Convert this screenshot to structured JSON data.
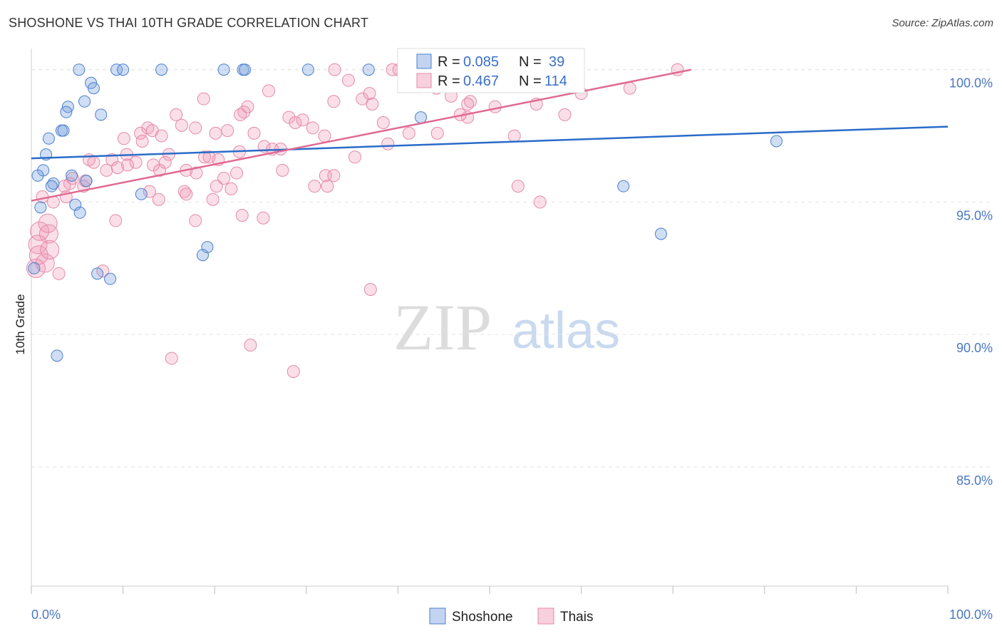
{
  "title": "SHOSHONE VS THAI 10TH GRADE CORRELATION CHART",
  "source": "Source: ZipAtlas.com",
  "watermark": {
    "zip": "ZIP",
    "atlas": "atlas"
  },
  "colors": {
    "shoshone_fill": "rgba(120,160,220,0.35)",
    "shoshone_stroke": "#4a7fd0",
    "shoshone_line": "#2a6cc9",
    "thai_fill": "rgba(240,150,180,0.30)",
    "thai_stroke": "#e58aa8",
    "thai_line": "#e06a93",
    "grid": "#e3e3e3",
    "tick_text": "#4a78c2"
  },
  "legend": {
    "r_label": "R =",
    "n_label": "N =",
    "rows": [
      {
        "name": "Shoshone",
        "r": "0.085",
        "n": "39"
      },
      {
        "name": "Thais",
        "r": "0.467",
        "n": "114"
      }
    ]
  },
  "chart_data": {
    "type": "scatter",
    "xlabel": "",
    "ylabel": "10th Grade",
    "xlim": [
      0,
      100
    ],
    "ylim": [
      80.5,
      100.8
    ],
    "x_tick_labels": [
      "0.0%",
      "100.0%"
    ],
    "y_ticks": [
      100,
      95,
      90,
      85
    ],
    "y_tick_labels": [
      "100.0%",
      "95.0%",
      "90.0%",
      "85.0%"
    ],
    "series": [
      {
        "name": "Shoshone",
        "trend": {
          "x": [
            0,
            100
          ],
          "y": [
            96.65,
            97.85
          ]
        },
        "points": [
          [
            5.2,
            100
          ],
          [
            9.3,
            100
          ],
          [
            10.0,
            100
          ],
          [
            14.2,
            100
          ],
          [
            21.0,
            100
          ],
          [
            23.1,
            100
          ],
          [
            23.3,
            100
          ],
          [
            30.2,
            100
          ],
          [
            36.8,
            100
          ],
          [
            6.5,
            99.5
          ],
          [
            6.8,
            99.3
          ],
          [
            5.8,
            98.8
          ],
          [
            4.0,
            98.6
          ],
          [
            3.8,
            98.4
          ],
          [
            7.6,
            98.3
          ],
          [
            42.5,
            98.2
          ],
          [
            3.3,
            97.7
          ],
          [
            3.5,
            97.7
          ],
          [
            1.9,
            97.4
          ],
          [
            81.3,
            97.3
          ],
          [
            1.6,
            96.8
          ],
          [
            1.3,
            96.2
          ],
          [
            0.7,
            96.0
          ],
          [
            4.4,
            96.0
          ],
          [
            2.4,
            95.7
          ],
          [
            6.0,
            95.8
          ],
          [
            2.2,
            95.6
          ],
          [
            64.6,
            95.6
          ],
          [
            12.0,
            95.3
          ],
          [
            1.0,
            94.8
          ],
          [
            4.8,
            94.9
          ],
          [
            5.3,
            94.6
          ],
          [
            68.7,
            93.8
          ],
          [
            19.2,
            93.3
          ],
          [
            18.7,
            93.0
          ],
          [
            0.3,
            92.5
          ],
          [
            7.2,
            92.3
          ],
          [
            8.6,
            92.1
          ],
          [
            2.8,
            89.2
          ]
        ]
      },
      {
        "name": "Thais",
        "trend": {
          "x": [
            0,
            72
          ],
          "y": [
            95.05,
            100
          ]
        },
        "points": [
          [
            33.1,
            100
          ],
          [
            40.1,
            100
          ],
          [
            39.4,
            100
          ],
          [
            42.6,
            100
          ],
          [
            49.0,
            100
          ],
          [
            53.5,
            100
          ],
          [
            70.5,
            100
          ],
          [
            34.6,
            99.6
          ],
          [
            25.9,
            99.2
          ],
          [
            36.9,
            99.1
          ],
          [
            18.8,
            98.9
          ],
          [
            33.0,
            98.8
          ],
          [
            37.2,
            98.7
          ],
          [
            47.9,
            98.8
          ],
          [
            23.6,
            98.6
          ],
          [
            23.2,
            98.4
          ],
          [
            15.8,
            98.3
          ],
          [
            22.8,
            98.3
          ],
          [
            28.1,
            98.2
          ],
          [
            28.8,
            98.0
          ],
          [
            47.6,
            98.2
          ],
          [
            16.4,
            97.9
          ],
          [
            38.4,
            98.0
          ],
          [
            12.7,
            97.8
          ],
          [
            13.2,
            97.7
          ],
          [
            17.9,
            97.8
          ],
          [
            21.4,
            97.7
          ],
          [
            24.3,
            97.6
          ],
          [
            14.2,
            97.5
          ],
          [
            20.1,
            97.6
          ],
          [
            11.9,
            97.6
          ],
          [
            44.3,
            97.6
          ],
          [
            52.7,
            97.5
          ],
          [
            32.0,
            97.5
          ],
          [
            10.1,
            97.4
          ],
          [
            12.1,
            97.3
          ],
          [
            25.4,
            97.1
          ],
          [
            26.3,
            97.0
          ],
          [
            27.2,
            97.0
          ],
          [
            22.7,
            96.9
          ],
          [
            10.4,
            96.8
          ],
          [
            15.0,
            96.8
          ],
          [
            18.9,
            96.7
          ],
          [
            19.4,
            96.7
          ],
          [
            20.4,
            96.6
          ],
          [
            35.3,
            96.7
          ],
          [
            6.3,
            96.6
          ],
          [
            8.8,
            96.6
          ],
          [
            6.8,
            96.5
          ],
          [
            11.4,
            96.5
          ],
          [
            14.6,
            96.5
          ],
          [
            9.4,
            96.3
          ],
          [
            10.5,
            96.4
          ],
          [
            13.3,
            96.4
          ],
          [
            8.2,
            96.2
          ],
          [
            14.0,
            96.2
          ],
          [
            16.9,
            96.2
          ],
          [
            27.4,
            96.2
          ],
          [
            22.4,
            96.1
          ],
          [
            32.1,
            96.0
          ],
          [
            33.0,
            96.0
          ],
          [
            4.5,
            95.9
          ],
          [
            5.9,
            95.8
          ],
          [
            4.2,
            95.7
          ],
          [
            20.2,
            95.6
          ],
          [
            30.9,
            95.6
          ],
          [
            32.3,
            95.6
          ],
          [
            53.1,
            95.6
          ],
          [
            3.6,
            95.6
          ],
          [
            5.7,
            95.6
          ],
          [
            12.9,
            95.4
          ],
          [
            16.7,
            95.4
          ],
          [
            21.8,
            95.5
          ],
          [
            16.9,
            95.3
          ],
          [
            1.2,
            95.2
          ],
          [
            3.8,
            95.2
          ],
          [
            13.9,
            95.1
          ],
          [
            19.8,
            95.1
          ],
          [
            2.4,
            95.0
          ],
          [
            55.5,
            95.0
          ],
          [
            23.0,
            94.5
          ],
          [
            25.3,
            94.4
          ],
          [
            9.2,
            94.3
          ],
          [
            17.9,
            94.3
          ],
          [
            1.8,
            94.2
          ],
          [
            0.9,
            93.9
          ],
          [
            1.9,
            93.8
          ],
          [
            0.7,
            93.4
          ],
          [
            0.8,
            93.0
          ],
          [
            0.5,
            92.5
          ],
          [
            3.0,
            92.3
          ],
          [
            7.8,
            92.4
          ],
          [
            37.0,
            91.7
          ],
          [
            23.9,
            89.6
          ],
          [
            15.3,
            89.1
          ],
          [
            28.6,
            88.6
          ],
          [
            1.5,
            92.7
          ],
          [
            2.0,
            93.2
          ],
          [
            47.6,
            98.7
          ],
          [
            46.8,
            98.3
          ],
          [
            36.1,
            98.9
          ],
          [
            38.9,
            97.2
          ],
          [
            41.2,
            97.6
          ],
          [
            29.6,
            98.1
          ],
          [
            30.7,
            97.8
          ],
          [
            44.2,
            99.3
          ],
          [
            45.8,
            99.0
          ],
          [
            50.6,
            98.6
          ],
          [
            55.1,
            98.7
          ],
          [
            58.2,
            98.3
          ],
          [
            60.0,
            99.1
          ],
          [
            65.3,
            99.3
          ],
          [
            18.0,
            96.1
          ],
          [
            21.0,
            95.9
          ]
        ]
      }
    ]
  }
}
